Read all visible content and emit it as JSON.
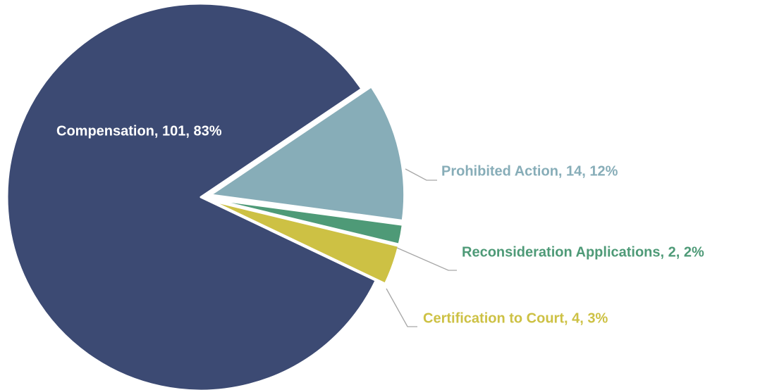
{
  "chart_data": {
    "type": "pie",
    "values": [
      101,
      14,
      2,
      4
    ],
    "value_labels": [
      "Compensation, 101, 83%",
      "Prohibited Action, 14, 12%",
      "Reconsideration Applications, 2, 2%",
      "Certification to Court, 4, 3%"
    ],
    "colors": [
      "#3c4a73",
      "#87adb8",
      "#4e9a77",
      "#cdc144"
    ],
    "label_colors": [
      "#ffffff",
      "#87adb8",
      "#4e9a77",
      "#cdc144"
    ],
    "start_slice": 1,
    "start_angle": -34
  }
}
